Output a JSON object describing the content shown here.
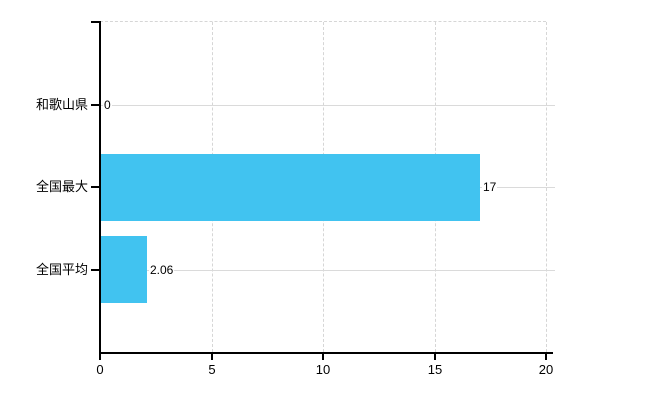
{
  "chart_data": {
    "type": "bar",
    "orientation": "horizontal",
    "title": "",
    "xlabel": "",
    "ylabel": "",
    "categories": [
      "和歌山県",
      "全国最大",
      "全国平均"
    ],
    "values": [
      0,
      17,
      2.06
    ],
    "value_labels": [
      "0",
      "17",
      "2.06"
    ],
    "xlim": [
      0,
      20
    ],
    "xticks": [
      0,
      5,
      10,
      15,
      20
    ],
    "xtick_labels": [
      "0",
      "5",
      "10",
      "15",
      "20"
    ],
    "grid": true,
    "legend": "none",
    "colors": {
      "bar": "#41C3F0",
      "axis": "#000000",
      "grid_vertical": "#D6D6D6",
      "grid_horizontal": "#DADADA",
      "text": "#000000",
      "background": "#FFFFFF"
    }
  }
}
